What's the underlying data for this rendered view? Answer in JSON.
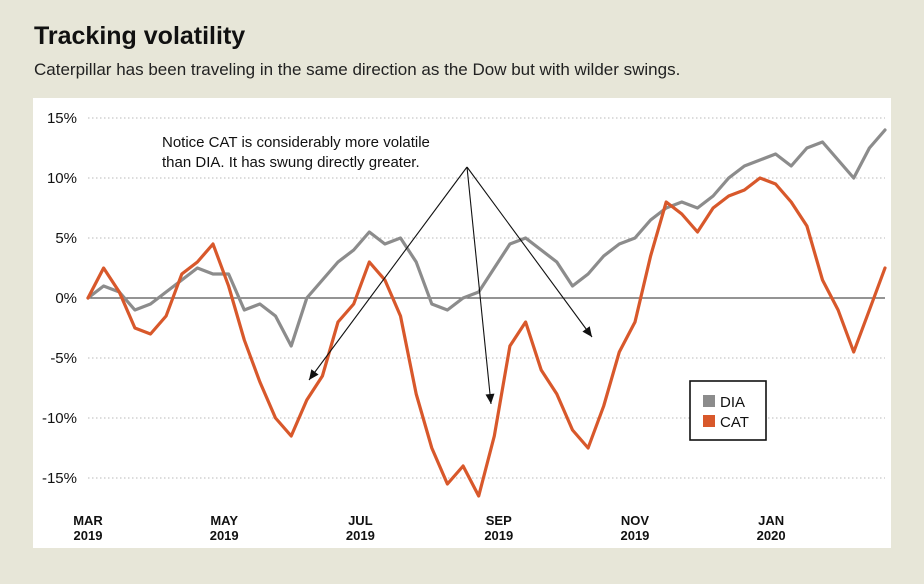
{
  "header": {
    "title": "Tracking volatility",
    "subtitle": "Caterpillar has been traveling in the same direction as the Dow but with wilder swings."
  },
  "colors": {
    "dia": "#8c8c8c",
    "cat": "#d8582b",
    "grid": "#b9b9b9",
    "zero": "#555555"
  },
  "chart_data": {
    "type": "line",
    "title": "Tracking volatility",
    "subtitle": "Caterpillar has been traveling in the same direction as the Dow but with wilder swings.",
    "xlabel": "",
    "ylabel": "",
    "ylim": [
      -15,
      15
    ],
    "yticks": [
      15,
      10,
      5,
      0,
      -5,
      -10,
      -15
    ],
    "ytick_labels": [
      "15%",
      "10%",
      "5%",
      "0%",
      "-5%",
      "-10%",
      "-15%"
    ],
    "xticks": [
      {
        "month": "MAR",
        "year": "2019",
        "date": "2019-03-01"
      },
      {
        "month": "MAY",
        "year": "2019",
        "date": "2019-05-01"
      },
      {
        "month": "JUL",
        "year": "2019",
        "date": "2019-07-01"
      },
      {
        "month": "SEP",
        "year": "2019",
        "date": "2019-09-01"
      },
      {
        "month": "NOV",
        "year": "2019",
        "date": "2019-11-01"
      },
      {
        "month": "JAN",
        "year": "2020",
        "date": "2020-01-01"
      }
    ],
    "grid": true,
    "legend": {
      "placement": "lower-right"
    },
    "annotation": {
      "lines": [
        "Notice CAT is considerably more volatile",
        "than DIA. It has swung directly greater."
      ]
    },
    "x": [
      "2019-03-01",
      "2019-03-08",
      "2019-03-15",
      "2019-03-22",
      "2019-03-29",
      "2019-04-05",
      "2019-04-12",
      "2019-04-19",
      "2019-04-26",
      "2019-05-03",
      "2019-05-10",
      "2019-05-17",
      "2019-05-24",
      "2019-05-31",
      "2019-06-07",
      "2019-06-14",
      "2019-06-21",
      "2019-06-28",
      "2019-07-05",
      "2019-07-12",
      "2019-07-19",
      "2019-07-26",
      "2019-08-02",
      "2019-08-09",
      "2019-08-16",
      "2019-08-23",
      "2019-08-30",
      "2019-09-06",
      "2019-09-13",
      "2019-09-20",
      "2019-09-27",
      "2019-10-04",
      "2019-10-11",
      "2019-10-18",
      "2019-10-25",
      "2019-11-01",
      "2019-11-08",
      "2019-11-15",
      "2019-11-22",
      "2019-11-29",
      "2019-12-06",
      "2019-12-13",
      "2019-12-20",
      "2019-12-27",
      "2020-01-03",
      "2020-01-10",
      "2020-01-17",
      "2020-01-24",
      "2020-01-31",
      "2020-02-07",
      "2020-02-14",
      "2020-02-21"
    ],
    "series": [
      {
        "name": "DIA",
        "values": [
          0.0,
          1.0,
          0.5,
          -1.0,
          -0.5,
          0.5,
          1.5,
          2.5,
          2.0,
          2.0,
          -1.0,
          -0.5,
          -1.5,
          -4.0,
          0.0,
          1.5,
          3.0,
          4.0,
          5.5,
          4.5,
          5.0,
          3.0,
          -0.5,
          -1.0,
          0.0,
          0.5,
          2.5,
          4.5,
          5.0,
          4.0,
          3.0,
          1.0,
          2.0,
          3.5,
          4.5,
          5.0,
          6.5,
          7.5,
          8.0,
          7.5,
          8.5,
          10.0,
          11.0,
          11.5,
          12.0,
          11.0,
          12.5,
          13.0,
          11.5,
          10.0,
          12.5,
          14.0
        ]
      },
      {
        "name": "CAT",
        "values": [
          0.0,
          2.5,
          0.5,
          -2.5,
          -3.0,
          -1.5,
          2.0,
          3.0,
          4.5,
          1.0,
          -3.5,
          -7.0,
          -10.0,
          -11.5,
          -8.5,
          -6.5,
          -2.0,
          -0.5,
          3.0,
          1.5,
          -1.5,
          -8.0,
          -12.5,
          -15.5,
          -14.0,
          -16.5,
          -11.5,
          -4.0,
          -2.0,
          -6.0,
          -8.0,
          -11.0,
          -12.5,
          -9.0,
          -4.5,
          -2.0,
          3.5,
          8.0,
          7.0,
          5.5,
          7.5,
          8.5,
          9.0,
          10.0,
          9.5,
          8.0,
          6.0,
          1.5,
          -1.0,
          -4.5,
          -1.0,
          2.5
        ]
      }
    ]
  }
}
